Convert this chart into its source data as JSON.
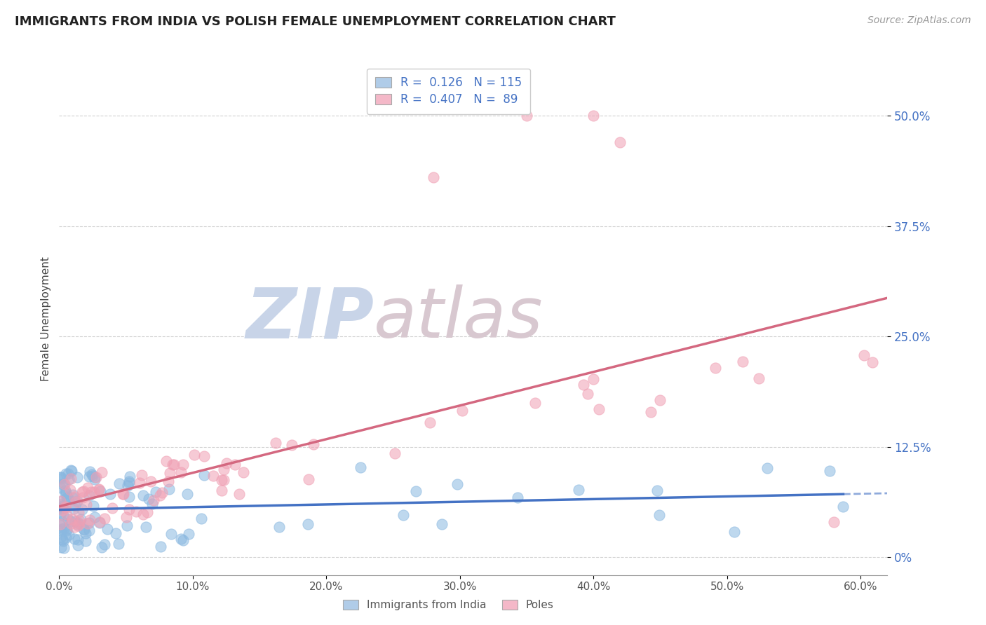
{
  "title": "IMMIGRANTS FROM INDIA VS POLISH FEMALE UNEMPLOYMENT CORRELATION CHART",
  "source_text": "Source: ZipAtlas.com",
  "ylabel": "Female Unemployment",
  "xlim": [
    0.0,
    0.62
  ],
  "ylim": [
    -0.02,
    0.56
  ],
  "xticks": [
    0.0,
    0.1,
    0.2,
    0.3,
    0.4,
    0.5,
    0.6
  ],
  "xticklabels": [
    "0.0%",
    "10.0%",
    "20.0%",
    "30.0%",
    "40.0%",
    "50.0%",
    "60.0%"
  ],
  "yticks": [
    0.0,
    0.125,
    0.25,
    0.375,
    0.5
  ],
  "yticklabels": [
    "0%",
    "12.5%",
    "25.0%",
    "37.5%",
    "50.0%"
  ],
  "watermark_zip": "ZIP",
  "watermark_atlas": "atlas",
  "watermark_color_zip": "#c8d4e8",
  "watermark_color_atlas": "#d8c8d0",
  "background_color": "#ffffff",
  "grid_color": "#cccccc",
  "title_color": "#222222",
  "title_fontsize": 13,
  "blue_scatter_color": "#8ab8e0",
  "pink_scatter_color": "#f0a0b4",
  "blue_line_color": "#4472c4",
  "pink_line_color": "#d46880",
  "legend_label_blue": "R =  0.126   N = 115",
  "legend_label_pink": "R =  0.407   N =  89",
  "legend_patch_blue": "#b0cce8",
  "legend_patch_pink": "#f4b8c8",
  "bottom_legend_blue": "Immigrants from India",
  "bottom_legend_pink": "Poles",
  "blue_N": 115,
  "pink_N": 89
}
